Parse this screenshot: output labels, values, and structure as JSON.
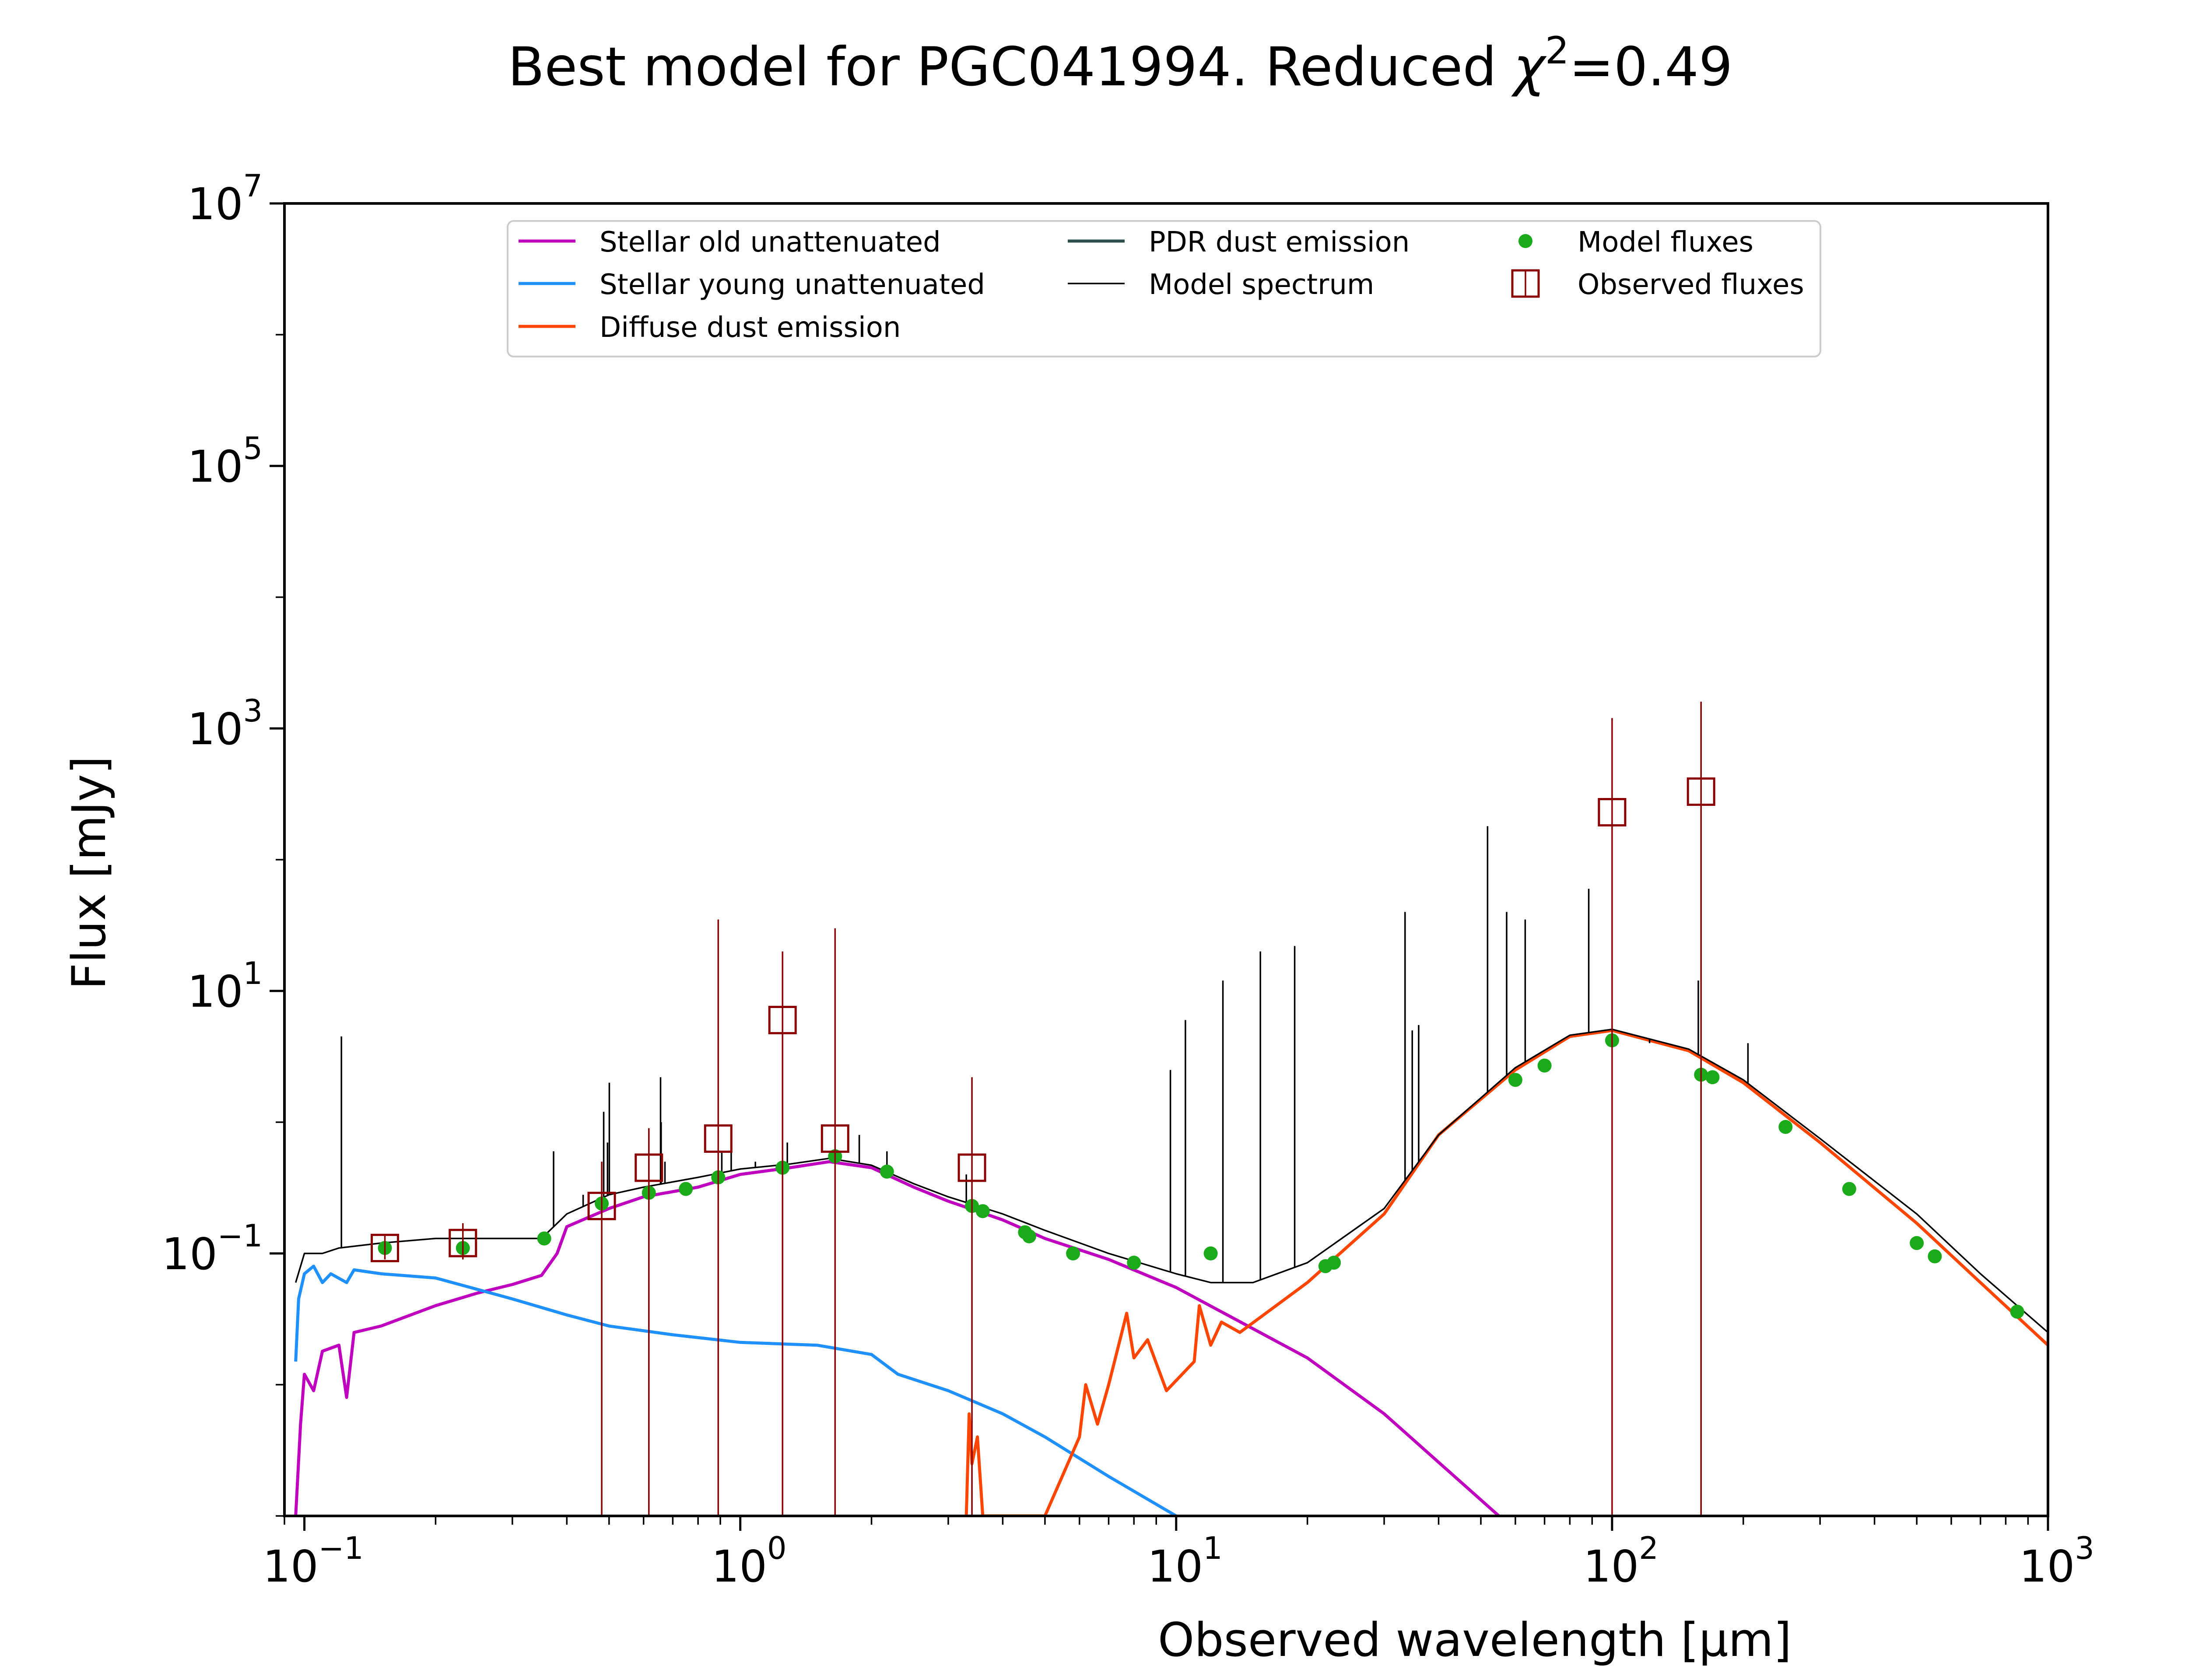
{
  "chart_data": {
    "type": "line",
    "title_prefix": "Best model for PGC041994. Reduced ",
    "title_chi_symbol": "χ",
    "title_chi_exponent": "2",
    "title_suffix": "=0.49",
    "xlabel": "Observed wavelength [μm]",
    "ylabel": "Flux [mJy]",
    "x_scale": "log",
    "y_scale": "log",
    "xlim": [
      0.09,
      1000
    ],
    "ylim": [
      0.001,
      10000000
    ],
    "grid": false,
    "legend_position": "top-center",
    "x_ticks": [
      {
        "value": 0.1,
        "base": "10",
        "exp": "−1"
      },
      {
        "value": 1,
        "base": "10",
        "exp": "0"
      },
      {
        "value": 10,
        "base": "10",
        "exp": "1"
      },
      {
        "value": 100,
        "base": "10",
        "exp": "2"
      },
      {
        "value": 1000,
        "base": "10",
        "exp": "3"
      }
    ],
    "y_ticks": [
      {
        "value": 0.1,
        "base": "10",
        "exp": "−1"
      },
      {
        "value": 10,
        "base": "10",
        "exp": "1"
      },
      {
        "value": 1000,
        "base": "10",
        "exp": "3"
      },
      {
        "value": 100000,
        "base": "10",
        "exp": "5"
      },
      {
        "value": 10000000,
        "base": "10",
        "exp": "7"
      }
    ],
    "series": [
      {
        "name": "Stellar old unattenuated",
        "color": "#bf00bf",
        "points": [
          [
            0.0955,
            0.001
          ],
          [
            0.098,
            0.005
          ],
          [
            0.1,
            0.012
          ],
          [
            0.105,
            0.009
          ],
          [
            0.11,
            0.018
          ],
          [
            0.12,
            0.02
          ],
          [
            0.125,
            0.008
          ],
          [
            0.13,
            0.025
          ],
          [
            0.15,
            0.028
          ],
          [
            0.2,
            0.04
          ],
          [
            0.25,
            0.05
          ],
          [
            0.3,
            0.058
          ],
          [
            0.35,
            0.068
          ],
          [
            0.38,
            0.1
          ],
          [
            0.4,
            0.16
          ],
          [
            0.5,
            0.22
          ],
          [
            0.6,
            0.27
          ],
          [
            0.8,
            0.32
          ],
          [
            1.0,
            0.4
          ],
          [
            1.3,
            0.45
          ],
          [
            1.6,
            0.5
          ],
          [
            2.0,
            0.45
          ],
          [
            2.5,
            0.32
          ],
          [
            3.0,
            0.25
          ],
          [
            3.5,
            0.21
          ],
          [
            4.0,
            0.18
          ],
          [
            5.0,
            0.13
          ],
          [
            7.0,
            0.09
          ],
          [
            10.0,
            0.055
          ],
          [
            20.0,
            0.016
          ],
          [
            30.0,
            0.006
          ],
          [
            55.0,
            0.001
          ]
        ]
      },
      {
        "name": "Stellar young unattenuated",
        "color": "#1e90ff",
        "points": [
          [
            0.0955,
            0.015
          ],
          [
            0.097,
            0.045
          ],
          [
            0.1,
            0.07
          ],
          [
            0.105,
            0.08
          ],
          [
            0.11,
            0.06
          ],
          [
            0.115,
            0.07
          ],
          [
            0.125,
            0.06
          ],
          [
            0.13,
            0.075
          ],
          [
            0.15,
            0.07
          ],
          [
            0.2,
            0.065
          ],
          [
            0.3,
            0.045
          ],
          [
            0.4,
            0.034
          ],
          [
            0.5,
            0.028
          ],
          [
            0.7,
            0.024
          ],
          [
            1.0,
            0.021
          ],
          [
            1.5,
            0.02
          ],
          [
            2.0,
            0.017
          ],
          [
            2.3,
            0.012
          ],
          [
            3.0,
            0.009
          ],
          [
            4.0,
            0.006
          ],
          [
            5.0,
            0.004
          ],
          [
            7.0,
            0.002
          ],
          [
            10.0,
            0.001
          ]
        ]
      },
      {
        "name": "Diffuse dust emission",
        "color": "#ff4500",
        "points": [
          [
            3.3,
            0.001
          ],
          [
            3.35,
            0.006
          ],
          [
            3.4,
            0.0025
          ],
          [
            3.5,
            0.004
          ],
          [
            3.6,
            0.001
          ],
          [
            5.0,
            0.001
          ],
          [
            6.0,
            0.004
          ],
          [
            6.2,
            0.01
          ],
          [
            6.6,
            0.005
          ],
          [
            7.0,
            0.01
          ],
          [
            7.7,
            0.035
          ],
          [
            8.0,
            0.016
          ],
          [
            8.6,
            0.022
          ],
          [
            9.5,
            0.009
          ],
          [
            11.0,
            0.015
          ],
          [
            11.3,
            0.04
          ],
          [
            12.0,
            0.02
          ],
          [
            12.7,
            0.03
          ],
          [
            14.0,
            0.025
          ],
          [
            20.0,
            0.06
          ],
          [
            30.0,
            0.2
          ],
          [
            40.0,
            0.8
          ],
          [
            60.0,
            2.5
          ],
          [
            80.0,
            4.5
          ],
          [
            100.0,
            5.0
          ],
          [
            150.0,
            3.5
          ],
          [
            200.0,
            2.0
          ],
          [
            300.0,
            0.7
          ],
          [
            500.0,
            0.17
          ],
          [
            700.0,
            0.06
          ],
          [
            1000.0,
            0.02
          ]
        ]
      },
      {
        "name": "PDR dust emission",
        "color": "#2f4f4f",
        "points": []
      },
      {
        "name": "Model spectrum",
        "color": "#000000",
        "points": [
          [
            0.0955,
            0.06
          ],
          [
            0.1,
            0.1
          ],
          [
            0.11,
            0.1
          ],
          [
            0.12,
            0.11
          ],
          [
            0.15,
            0.12
          ],
          [
            0.2,
            0.13
          ],
          [
            0.3,
            0.13
          ],
          [
            0.35,
            0.13
          ],
          [
            0.4,
            0.2
          ],
          [
            0.5,
            0.28
          ],
          [
            0.6,
            0.32
          ],
          [
            0.8,
            0.38
          ],
          [
            1.0,
            0.44
          ],
          [
            1.3,
            0.48
          ],
          [
            1.6,
            0.53
          ],
          [
            2.0,
            0.47
          ],
          [
            2.5,
            0.34
          ],
          [
            3.0,
            0.27
          ],
          [
            3.5,
            0.23
          ],
          [
            4.0,
            0.2
          ],
          [
            5.0,
            0.15
          ],
          [
            7.0,
            0.1
          ],
          [
            10.0,
            0.07
          ],
          [
            12.0,
            0.06
          ],
          [
            15.0,
            0.06
          ],
          [
            20.0,
            0.085
          ],
          [
            30.0,
            0.22
          ],
          [
            40.0,
            0.8
          ],
          [
            60.0,
            2.6
          ],
          [
            80.0,
            4.6
          ],
          [
            100.0,
            5.1
          ],
          [
            150.0,
            3.6
          ],
          [
            200.0,
            2.1
          ],
          [
            300.0,
            0.75
          ],
          [
            500.0,
            0.2
          ],
          [
            700.0,
            0.07
          ],
          [
            1000.0,
            0.025
          ]
        ],
        "emission_lines": [
          [
            0.1216,
            4.5
          ],
          [
            0.373,
            0.6
          ],
          [
            0.436,
            0.28
          ],
          [
            0.486,
            1.2
          ],
          [
            0.4959,
            0.7
          ],
          [
            0.5007,
            2.0
          ],
          [
            0.6563,
            2.2
          ],
          [
            0.6583,
            1.0
          ],
          [
            0.6717,
            0.5
          ],
          [
            0.9069,
            0.6
          ],
          [
            0.9532,
            0.7
          ],
          [
            1.083,
            0.5
          ],
          [
            1.282,
            0.7
          ],
          [
            1.875,
            0.8
          ],
          [
            2.17,
            0.6
          ],
          [
            3.3,
            0.4
          ],
          [
            9.7,
            2.5
          ],
          [
            10.5,
            6.0
          ],
          [
            12.8,
            12.0
          ],
          [
            15.6,
            20.0
          ],
          [
            18.7,
            22.0
          ],
          [
            33.5,
            40.0
          ],
          [
            34.8,
            5.0
          ],
          [
            36.0,
            5.5
          ],
          [
            51.8,
            180.0
          ],
          [
            57.3,
            40.0
          ],
          [
            63.2,
            35.0
          ],
          [
            88.4,
            60.0
          ],
          [
            121.9,
            4.0
          ],
          [
            157.7,
            12.0
          ],
          [
            205.0,
            4.0
          ]
        ]
      }
    ],
    "model_fluxes": {
      "name": "Model fluxes",
      "color": "#1aaa1a",
      "points": [
        [
          0.153,
          0.11
        ],
        [
          0.231,
          0.11
        ],
        [
          0.355,
          0.13
        ],
        [
          0.481,
          0.24
        ],
        [
          0.617,
          0.29
        ],
        [
          0.75,
          0.31
        ],
        [
          0.89,
          0.38
        ],
        [
          1.25,
          0.45
        ],
        [
          1.65,
          0.55
        ],
        [
          2.17,
          0.42
        ],
        [
          3.4,
          0.23
        ],
        [
          3.6,
          0.21
        ],
        [
          4.5,
          0.145
        ],
        [
          4.6,
          0.135
        ],
        [
          5.8,
          0.1
        ],
        [
          8.0,
          0.085
        ],
        [
          12.0,
          0.1
        ],
        [
          22.0,
          0.08
        ],
        [
          23.0,
          0.085
        ],
        [
          60.0,
          2.1
        ],
        [
          70.0,
          2.7
        ],
        [
          100.0,
          4.2
        ],
        [
          160.0,
          2.3
        ],
        [
          170.0,
          2.2
        ],
        [
          250.0,
          0.92
        ],
        [
          350.0,
          0.31
        ],
        [
          500.0,
          0.12
        ],
        [
          550.0,
          0.095
        ],
        [
          850.0,
          0.036
        ]
      ]
    },
    "observed_fluxes": {
      "name": "Observed fluxes",
      "color": "#8b0000",
      "points": [
        {
          "x": 0.153,
          "y": 0.11,
          "err_low": 0.09,
          "err_high": 0.14
        },
        {
          "x": 0.231,
          "y": 0.12,
          "err_low": 0.09,
          "err_high": 0.17
        },
        {
          "x": 0.481,
          "y": 0.23,
          "err_low": 0.001,
          "err_high": 0.5
        },
        {
          "x": 0.617,
          "y": 0.45,
          "err_low": 0.001,
          "err_high": 0.9
        },
        {
          "x": 0.89,
          "y": 0.75,
          "err_low": 0.001,
          "err_high": 35.0
        },
        {
          "x": 1.25,
          "y": 6.0,
          "err_low": 0.001,
          "err_high": 20.0
        },
        {
          "x": 1.65,
          "y": 0.75,
          "err_low": 0.001,
          "err_high": 30.0
        },
        {
          "x": 3.4,
          "y": 0.45,
          "err_low": 0.001,
          "err_high": 2.2
        },
        {
          "x": 100.0,
          "y": 230.0,
          "err_low": 0.001,
          "err_high": 1200.0
        },
        {
          "x": 160.0,
          "y": 330.0,
          "err_low": 0.001,
          "err_high": 1600.0
        }
      ]
    }
  }
}
